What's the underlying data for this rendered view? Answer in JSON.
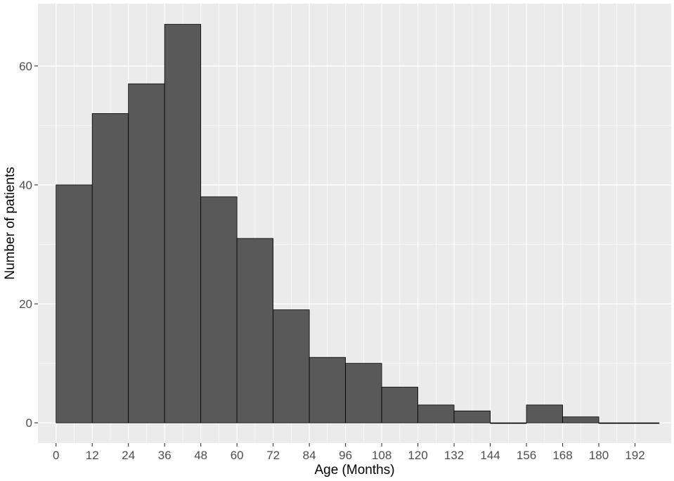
{
  "chart_data": {
    "type": "bar",
    "subtype": "histogram",
    "title": "",
    "xlabel": "Age (Months)",
    "ylabel": "Number of patients",
    "bin_width": 12,
    "bins": [
      {
        "start": 0,
        "end": 12,
        "count": 40
      },
      {
        "start": 12,
        "end": 24,
        "count": 52
      },
      {
        "start": 24,
        "end": 36,
        "count": 57
      },
      {
        "start": 36,
        "end": 48,
        "count": 67
      },
      {
        "start": 48,
        "end": 60,
        "count": 38
      },
      {
        "start": 60,
        "end": 72,
        "count": 31
      },
      {
        "start": 72,
        "end": 84,
        "count": 19
      },
      {
        "start": 84,
        "end": 96,
        "count": 11
      },
      {
        "start": 96,
        "end": 108,
        "count": 10
      },
      {
        "start": 108,
        "end": 120,
        "count": 6
      },
      {
        "start": 120,
        "end": 132,
        "count": 3
      },
      {
        "start": 132,
        "end": 144,
        "count": 2
      },
      {
        "start": 144,
        "end": 156,
        "count": 0
      },
      {
        "start": 156,
        "end": 168,
        "count": 3
      },
      {
        "start": 168,
        "end": 180,
        "count": 1
      },
      {
        "start": 180,
        "end": 192,
        "count": 0
      },
      {
        "start": 192,
        "end": 200,
        "count": 0
      }
    ],
    "x_ticks": [
      0,
      12,
      24,
      36,
      48,
      60,
      72,
      84,
      96,
      108,
      120,
      132,
      144,
      156,
      168,
      180,
      192
    ],
    "y_ticks": [
      0,
      20,
      40,
      60
    ],
    "xlim": [
      -6,
      204
    ],
    "ylim": [
      -3.4,
      70.5
    ],
    "grid": true,
    "legend": "none",
    "colors": {
      "panel": "#ebebeb",
      "grid_major": "#ffffff",
      "bar_fill": "#595959",
      "bar_outline": "#000000",
      "tick_label": "#4d4d4d",
      "axis_title": "#000000"
    }
  }
}
